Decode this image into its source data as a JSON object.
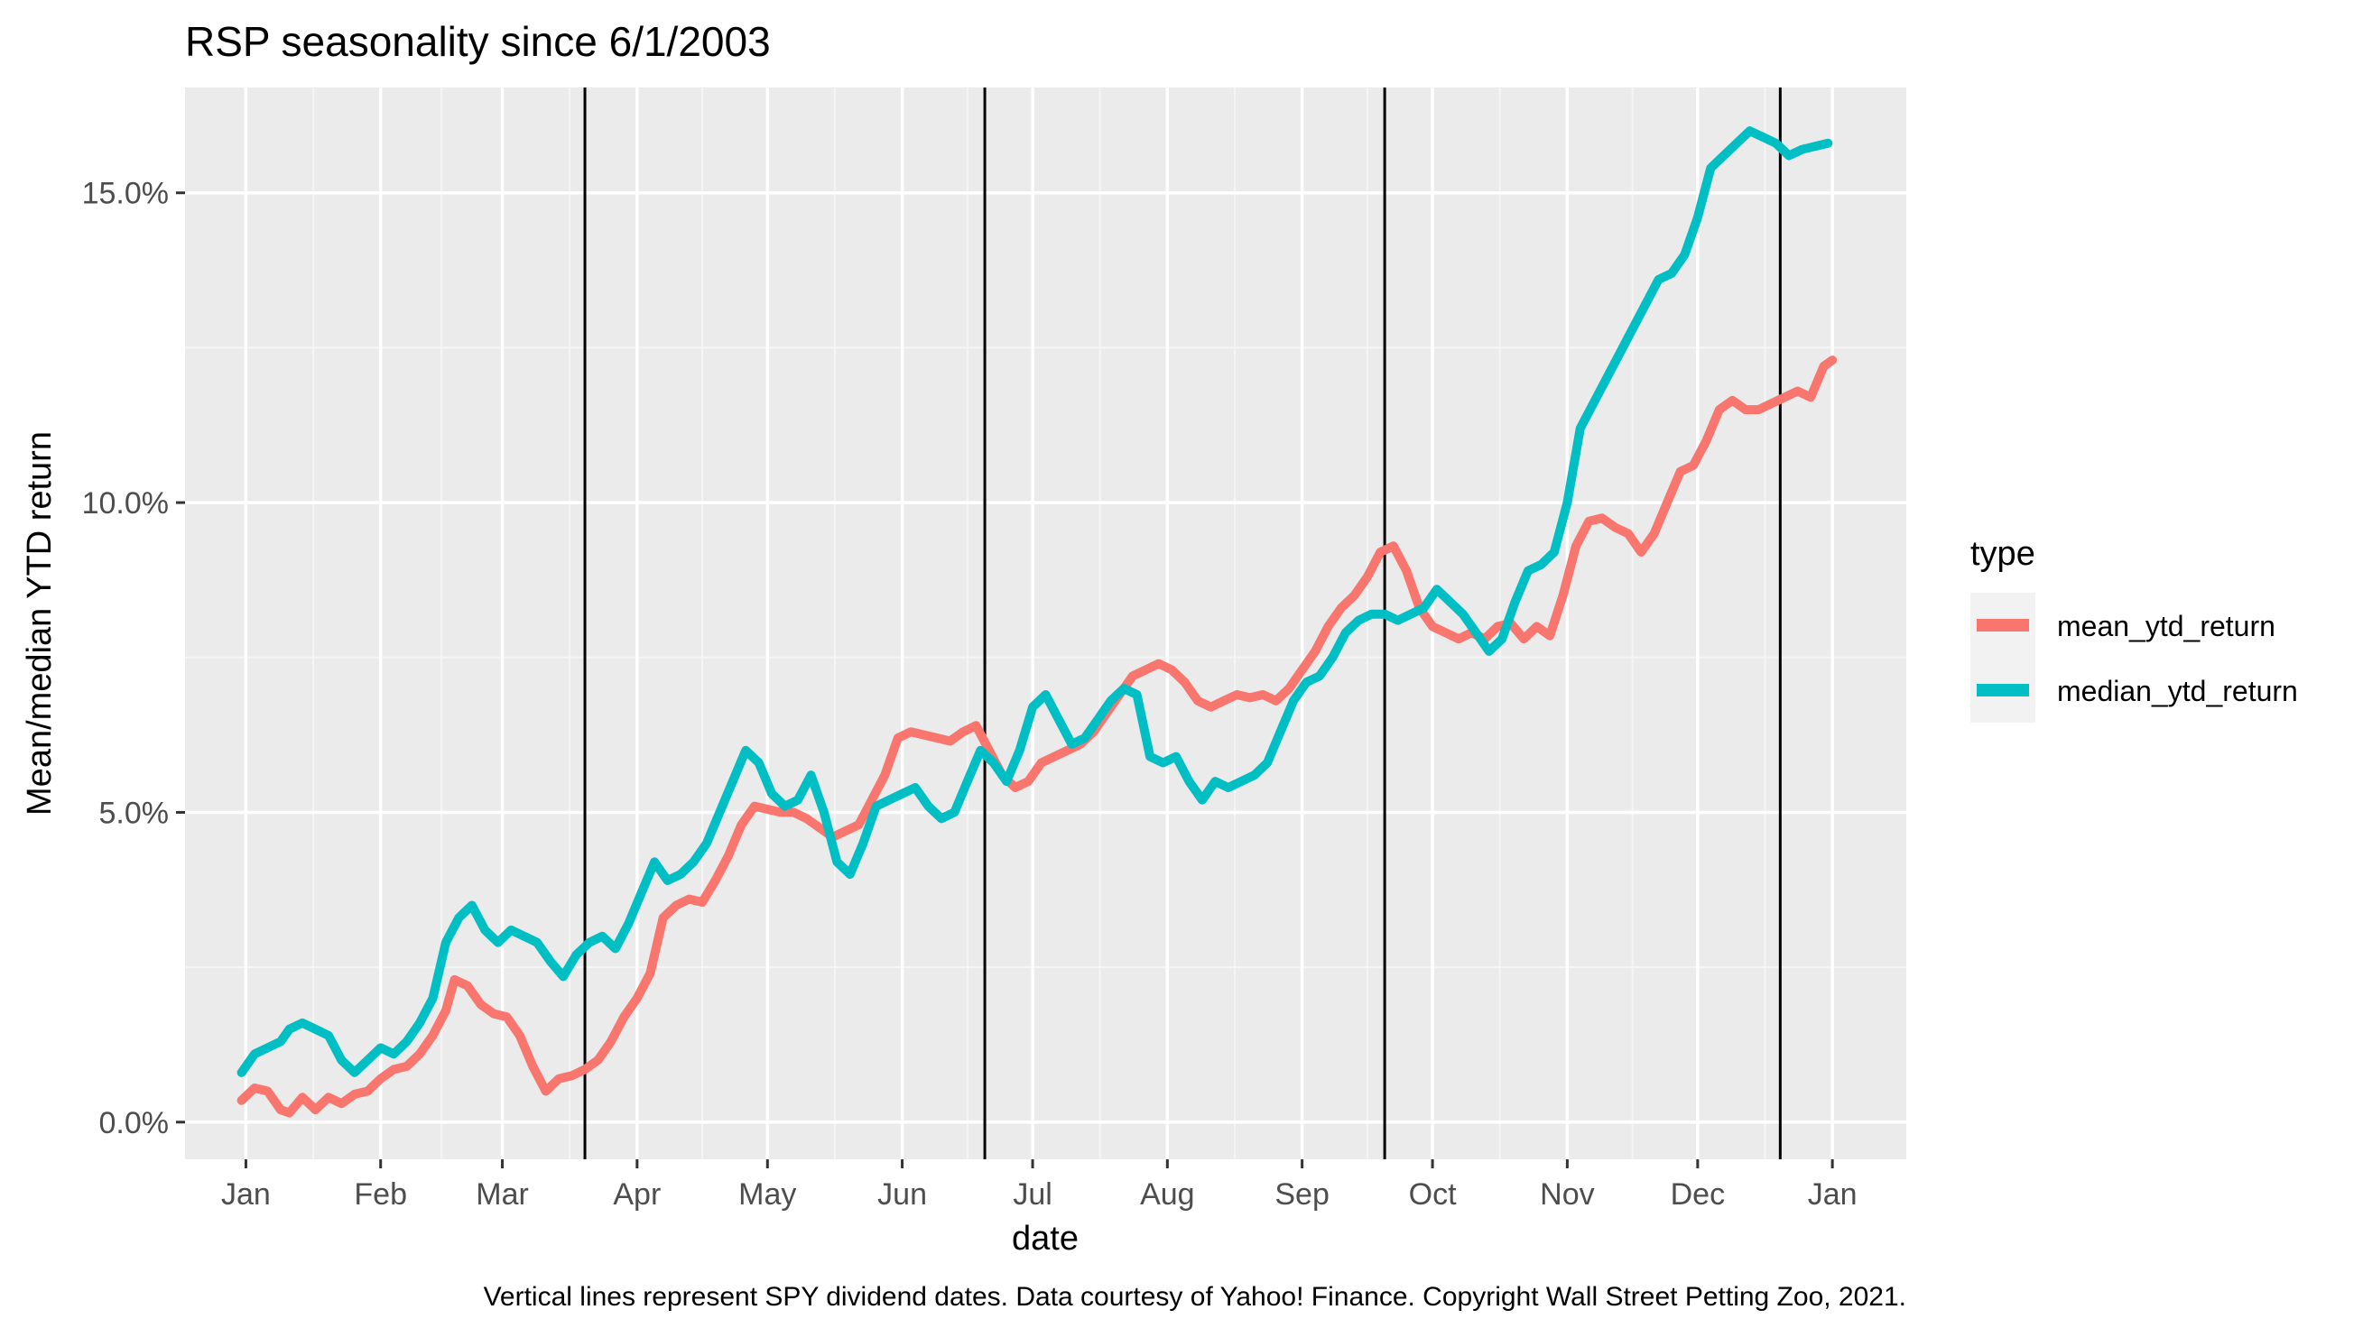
{
  "colors": {
    "panel_background": "#ebebeb",
    "grid_major": "#ffffff",
    "grid_minor": "#f5f5f5",
    "legend_key_background": "#f2f2f2",
    "dividend_line": "#000000",
    "mean_series": "#f8766d",
    "median_series": "#00bfc4"
  },
  "chart_data": {
    "type": "line",
    "title": "RSP seasonality since 6/1/2003",
    "xlabel": "date",
    "ylabel": "Mean/median YTD return",
    "caption": "Vertical lines represent SPY dividend dates. Data courtesy of Yahoo! Finance. Copyright Wall Street Petting Zoo, 2021.",
    "x_unit": "day of year",
    "xlim": [
      -13,
      383
    ],
    "ylim": [
      -0.6,
      16.7
    ],
    "y_tick_values": [
      0,
      5,
      10,
      15
    ],
    "y_tick_labels": [
      "0.0%",
      "5.0%",
      "10.0%",
      "15.0%"
    ],
    "x_tick_labels": [
      "Jan",
      "Feb",
      "Mar",
      "Apr",
      "May",
      "Jun",
      "Jul",
      "Aug",
      "Sep",
      "Oct",
      "Nov",
      "Dec",
      "Jan"
    ],
    "x_tick_values": [
      1,
      32,
      60,
      91,
      121,
      152,
      182,
      213,
      244,
      274,
      305,
      335,
      366
    ],
    "dividend_dates": [
      79,
      171,
      263,
      354
    ],
    "legend_title": "type",
    "legend_position": "right",
    "grid": true,
    "series": [
      {
        "name": "mean_ytd_return",
        "color": "#f8766d",
        "points": [
          [
            0,
            0.35
          ],
          [
            3,
            0.55
          ],
          [
            6,
            0.5
          ],
          [
            9,
            0.2
          ],
          [
            11,
            0.15
          ],
          [
            14,
            0.4
          ],
          [
            17,
            0.2
          ],
          [
            20,
            0.4
          ],
          [
            23,
            0.3
          ],
          [
            26,
            0.45
          ],
          [
            29,
            0.5
          ],
          [
            32,
            0.7
          ],
          [
            35,
            0.85
          ],
          [
            38,
            0.9
          ],
          [
            41,
            1.1
          ],
          [
            44,
            1.4
          ],
          [
            47,
            1.8
          ],
          [
            49,
            2.3
          ],
          [
            52,
            2.2
          ],
          [
            55,
            1.9
          ],
          [
            58,
            1.75
          ],
          [
            61,
            1.7
          ],
          [
            64,
            1.4
          ],
          [
            67,
            0.9
          ],
          [
            70,
            0.5
          ],
          [
            73,
            0.7
          ],
          [
            76,
            0.75
          ],
          [
            79,
            0.85
          ],
          [
            82,
            1.0
          ],
          [
            85,
            1.3
          ],
          [
            88,
            1.7
          ],
          [
            91,
            2.0
          ],
          [
            94,
            2.4
          ],
          [
            97,
            3.3
          ],
          [
            100,
            3.5
          ],
          [
            103,
            3.6
          ],
          [
            106,
            3.55
          ],
          [
            109,
            3.9
          ],
          [
            112,
            4.3
          ],
          [
            115,
            4.8
          ],
          [
            118,
            5.1
          ],
          [
            121,
            5.05
          ],
          [
            124,
            5.0
          ],
          [
            127,
            5.0
          ],
          [
            130,
            4.9
          ],
          [
            133,
            4.75
          ],
          [
            136,
            4.6
          ],
          [
            139,
            4.7
          ],
          [
            142,
            4.8
          ],
          [
            145,
            5.2
          ],
          [
            148,
            5.6
          ],
          [
            151,
            6.2
          ],
          [
            154,
            6.3
          ],
          [
            157,
            6.25
          ],
          [
            160,
            6.2
          ],
          [
            163,
            6.15
          ],
          [
            166,
            6.3
          ],
          [
            169,
            6.4
          ],
          [
            172,
            6.0
          ],
          [
            175,
            5.6
          ],
          [
            178,
            5.4
          ],
          [
            181,
            5.5
          ],
          [
            184,
            5.8
          ],
          [
            187,
            5.9
          ],
          [
            190,
            6.0
          ],
          [
            193,
            6.1
          ],
          [
            196,
            6.3
          ],
          [
            199,
            6.6
          ],
          [
            202,
            6.9
          ],
          [
            205,
            7.2
          ],
          [
            208,
            7.3
          ],
          [
            211,
            7.4
          ],
          [
            214,
            7.3
          ],
          [
            217,
            7.1
          ],
          [
            220,
            6.8
          ],
          [
            223,
            6.7
          ],
          [
            226,
            6.8
          ],
          [
            229,
            6.9
          ],
          [
            232,
            6.85
          ],
          [
            235,
            6.9
          ],
          [
            238,
            6.8
          ],
          [
            241,
            7.0
          ],
          [
            244,
            7.3
          ],
          [
            247,
            7.6
          ],
          [
            250,
            8.0
          ],
          [
            253,
            8.3
          ],
          [
            256,
            8.5
          ],
          [
            259,
            8.8
          ],
          [
            262,
            9.2
          ],
          [
            265,
            9.3
          ],
          [
            268,
            8.9
          ],
          [
            271,
            8.3
          ],
          [
            274,
            8.0
          ],
          [
            277,
            7.9
          ],
          [
            280,
            7.8
          ],
          [
            283,
            7.9
          ],
          [
            286,
            7.8
          ],
          [
            289,
            8.0
          ],
          [
            292,
            8.05
          ],
          [
            295,
            7.8
          ],
          [
            298,
            8.0
          ],
          [
            301,
            7.85
          ],
          [
            304,
            8.5
          ],
          [
            307,
            9.3
          ],
          [
            310,
            9.7
          ],
          [
            313,
            9.75
          ],
          [
            316,
            9.6
          ],
          [
            319,
            9.5
          ],
          [
            322,
            9.2
          ],
          [
            325,
            9.5
          ],
          [
            328,
            10.0
          ],
          [
            331,
            10.5
          ],
          [
            334,
            10.6
          ],
          [
            337,
            11.0
          ],
          [
            340,
            11.5
          ],
          [
            343,
            11.65
          ],
          [
            346,
            11.5
          ],
          [
            349,
            11.5
          ],
          [
            352,
            11.6
          ],
          [
            355,
            11.7
          ],
          [
            358,
            11.8
          ],
          [
            361,
            11.7
          ],
          [
            364,
            12.2
          ],
          [
            366,
            12.3
          ]
        ]
      },
      {
        "name": "median_ytd_return",
        "color": "#00bfc4",
        "points": [
          [
            0,
            0.8
          ],
          [
            3,
            1.1
          ],
          [
            6,
            1.2
          ],
          [
            9,
            1.3
          ],
          [
            11,
            1.5
          ],
          [
            14,
            1.6
          ],
          [
            17,
            1.5
          ],
          [
            20,
            1.4
          ],
          [
            23,
            1.0
          ],
          [
            26,
            0.8
          ],
          [
            29,
            1.0
          ],
          [
            32,
            1.2
          ],
          [
            35,
            1.1
          ],
          [
            38,
            1.3
          ],
          [
            41,
            1.6
          ],
          [
            44,
            2.0
          ],
          [
            47,
            2.9
          ],
          [
            50,
            3.3
          ],
          [
            53,
            3.5
          ],
          [
            56,
            3.1
          ],
          [
            59,
            2.9
          ],
          [
            62,
            3.1
          ],
          [
            65,
            3.0
          ],
          [
            68,
            2.9
          ],
          [
            71,
            2.6
          ],
          [
            74,
            2.35
          ],
          [
            77,
            2.7
          ],
          [
            80,
            2.9
          ],
          [
            83,
            3.0
          ],
          [
            86,
            2.8
          ],
          [
            89,
            3.2
          ],
          [
            92,
            3.7
          ],
          [
            95,
            4.2
          ],
          [
            98,
            3.9
          ],
          [
            101,
            4.0
          ],
          [
            104,
            4.2
          ],
          [
            107,
            4.5
          ],
          [
            110,
            5.0
          ],
          [
            113,
            5.5
          ],
          [
            116,
            6.0
          ],
          [
            119,
            5.8
          ],
          [
            122,
            5.3
          ],
          [
            125,
            5.1
          ],
          [
            128,
            5.2
          ],
          [
            131,
            5.6
          ],
          [
            134,
            5.0
          ],
          [
            137,
            4.2
          ],
          [
            140,
            4.0
          ],
          [
            143,
            4.5
          ],
          [
            146,
            5.1
          ],
          [
            149,
            5.2
          ],
          [
            152,
            5.3
          ],
          [
            155,
            5.4
          ],
          [
            158,
            5.1
          ],
          [
            161,
            4.9
          ],
          [
            164,
            5.0
          ],
          [
            167,
            5.5
          ],
          [
            170,
            6.0
          ],
          [
            173,
            5.8
          ],
          [
            176,
            5.5
          ],
          [
            179,
            6.0
          ],
          [
            182,
            6.7
          ],
          [
            185,
            6.9
          ],
          [
            188,
            6.5
          ],
          [
            191,
            6.1
          ],
          [
            194,
            6.2
          ],
          [
            197,
            6.5
          ],
          [
            200,
            6.8
          ],
          [
            203,
            7.0
          ],
          [
            206,
            6.9
          ],
          [
            209,
            5.9
          ],
          [
            212,
            5.8
          ],
          [
            215,
            5.9
          ],
          [
            218,
            5.5
          ],
          [
            221,
            5.2
          ],
          [
            224,
            5.5
          ],
          [
            227,
            5.4
          ],
          [
            230,
            5.5
          ],
          [
            233,
            5.6
          ],
          [
            236,
            5.8
          ],
          [
            239,
            6.3
          ],
          [
            242,
            6.8
          ],
          [
            245,
            7.1
          ],
          [
            248,
            7.2
          ],
          [
            251,
            7.5
          ],
          [
            254,
            7.9
          ],
          [
            257,
            8.1
          ],
          [
            260,
            8.2
          ],
          [
            263,
            8.2
          ],
          [
            266,
            8.1
          ],
          [
            269,
            8.2
          ],
          [
            272,
            8.3
          ],
          [
            275,
            8.6
          ],
          [
            278,
            8.4
          ],
          [
            281,
            8.2
          ],
          [
            284,
            7.9
          ],
          [
            287,
            7.6
          ],
          [
            290,
            7.8
          ],
          [
            293,
            8.4
          ],
          [
            296,
            8.9
          ],
          [
            299,
            9.0
          ],
          [
            302,
            9.2
          ],
          [
            305,
            10.0
          ],
          [
            308,
            11.2
          ],
          [
            311,
            11.6
          ],
          [
            314,
            12.0
          ],
          [
            317,
            12.4
          ],
          [
            320,
            12.8
          ],
          [
            323,
            13.2
          ],
          [
            326,
            13.6
          ],
          [
            329,
            13.7
          ],
          [
            332,
            14.0
          ],
          [
            335,
            14.6
          ],
          [
            338,
            15.4
          ],
          [
            341,
            15.6
          ],
          [
            344,
            15.8
          ],
          [
            347,
            16.0
          ],
          [
            350,
            15.9
          ],
          [
            353,
            15.8
          ],
          [
            356,
            15.6
          ],
          [
            359,
            15.7
          ],
          [
            362,
            15.75
          ],
          [
            365,
            15.8
          ]
        ]
      }
    ]
  }
}
